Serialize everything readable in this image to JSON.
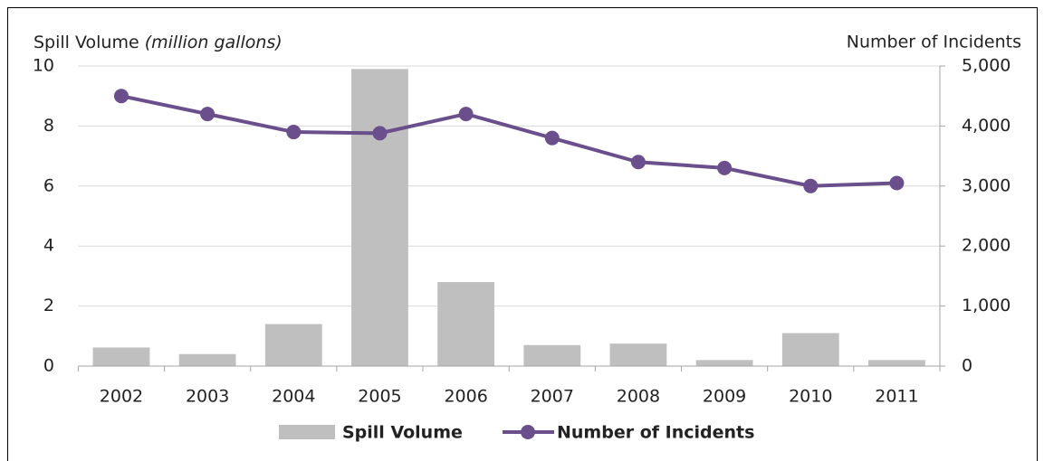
{
  "chart_data": {
    "type": "bar_line",
    "ylabel": "Spill Volume",
    "ylabel_unit": "(million gallons)",
    "y2label": "Number of Incidents",
    "categories": [
      "2002",
      "2003",
      "2004",
      "2005",
      "2006",
      "2007",
      "2008",
      "2009",
      "2010",
      "2011"
    ],
    "series": [
      {
        "name": "Spill Volume",
        "type": "bar",
        "color": "#bfbfbf",
        "axis": "y",
        "values": [
          0.62,
          0.4,
          1.4,
          9.9,
          2.8,
          0.7,
          0.75,
          0.2,
          1.1,
          0.2
        ]
      },
      {
        "name": "Number of Incidents",
        "type": "line",
        "color": "#6a4f8c",
        "axis": "y2",
        "values": [
          4500,
          4200,
          3900,
          3880,
          4200,
          3800,
          3400,
          3300,
          3000,
          3050
        ]
      }
    ],
    "ylim": [
      0,
      10
    ],
    "yticks": [
      0,
      2,
      4,
      6,
      8,
      10
    ],
    "y2lim": [
      0,
      5000
    ],
    "y2ticks": [
      0,
      {
        "value": 1000,
        "label": "1,000"
      },
      {
        "value": 2000,
        "label": "2,000"
      },
      {
        "value": 3000,
        "label": "3,000"
      },
      {
        "value": 4000,
        "label": "4,000"
      },
      {
        "value": 5000,
        "label": "5,000"
      }
    ],
    "grid": true,
    "legend": "bottom"
  }
}
